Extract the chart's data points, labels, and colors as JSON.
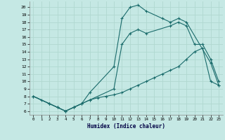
{
  "xlabel": "Humidex (Indice chaleur)",
  "xlim": [
    -0.5,
    23.5
  ],
  "ylim": [
    5.5,
    20.8
  ],
  "xticks": [
    0,
    1,
    2,
    3,
    4,
    5,
    6,
    7,
    8,
    9,
    10,
    11,
    12,
    13,
    14,
    15,
    16,
    17,
    18,
    19,
    20,
    21,
    22,
    23
  ],
  "yticks": [
    6,
    7,
    8,
    9,
    10,
    11,
    12,
    13,
    14,
    15,
    16,
    17,
    18,
    19,
    20
  ],
  "bg_color": "#c5e8e4",
  "grid_color": "#b0d8d0",
  "line_color": "#1a6b6b",
  "line1_x": [
    0,
    1,
    2,
    3,
    4,
    5,
    6,
    7,
    10,
    11,
    12,
    13,
    14,
    16,
    17,
    18,
    19,
    22,
    23
  ],
  "line1_y": [
    8,
    7.5,
    7,
    6.5,
    6,
    6.5,
    7,
    8.5,
    12,
    18.5,
    20,
    20.3,
    19.5,
    18.5,
    18,
    18.5,
    18,
    12.5,
    9.5
  ],
  "line2_x": [
    0,
    2,
    3,
    4,
    5,
    6,
    7,
    10,
    11,
    12,
    13,
    14,
    17,
    18,
    19,
    20,
    21,
    22,
    23
  ],
  "line2_y": [
    8,
    7,
    6.5,
    6,
    6.5,
    7,
    7.5,
    9,
    15,
    16.5,
    17,
    16.5,
    17.5,
    18,
    17.5,
    15,
    15,
    13,
    10
  ],
  "line3_x": [
    0,
    2,
    3,
    4,
    5,
    6,
    7,
    8,
    9,
    10,
    11,
    12,
    13,
    14,
    15,
    16,
    17,
    18,
    19,
    20,
    21,
    22,
    23
  ],
  "line3_y": [
    8,
    7,
    6.5,
    6,
    6.5,
    7,
    7.5,
    7.8,
    8.0,
    8.2,
    8.5,
    9.0,
    9.5,
    10,
    10.5,
    11,
    11.5,
    12,
    13,
    14,
    14.5,
    10,
    9.5
  ]
}
